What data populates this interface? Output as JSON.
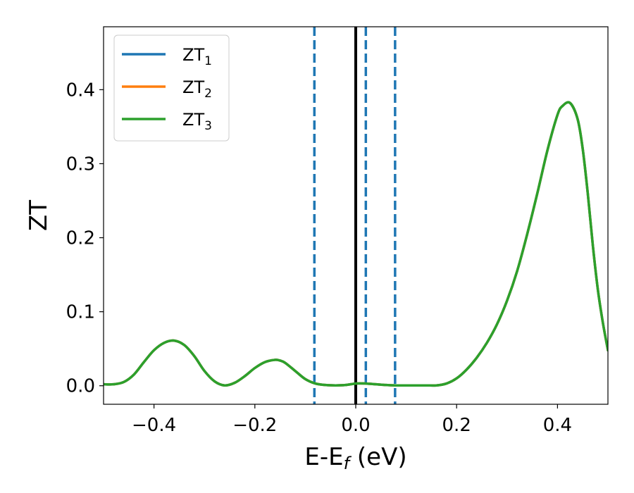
{
  "chart_data": {
    "type": "line",
    "xlabel": {
      "main": "E-E",
      "sub": "f",
      "suffix": " (eV)"
    },
    "ylabel": "ZT",
    "xlim": [
      -0.5,
      0.5
    ],
    "ylim": [
      -0.025,
      0.485
    ],
    "grid": false,
    "legend_position": "top-left",
    "x_ticks": [
      -0.4,
      -0.2,
      0.0,
      0.2,
      0.4
    ],
    "x_tick_labels": [
      "−0.4",
      "−0.2",
      "0.0",
      "0.2",
      "0.4"
    ],
    "y_ticks": [
      0.0,
      0.1,
      0.2,
      0.3,
      0.4
    ],
    "y_tick_labels": [
      "0.0",
      "0.1",
      "0.2",
      "0.3",
      "0.4"
    ],
    "vertical_lines": [
      {
        "x": -0.082,
        "style": "dashed",
        "color": "#1f77b4"
      },
      {
        "x": 0.0,
        "style": "solid",
        "color": "#000000"
      },
      {
        "x": 0.02,
        "style": "dashed",
        "color": "#1f77b4"
      },
      {
        "x": 0.078,
        "style": "dashed",
        "color": "#1f77b4"
      }
    ],
    "x": [
      -0.5,
      -0.48,
      -0.46,
      -0.44,
      -0.42,
      -0.4,
      -0.38,
      -0.36,
      -0.34,
      -0.32,
      -0.3,
      -0.28,
      -0.26,
      -0.24,
      -0.22,
      -0.2,
      -0.18,
      -0.16,
      -0.15,
      -0.14,
      -0.12,
      -0.1,
      -0.08,
      -0.06,
      -0.04,
      -0.02,
      0.0,
      0.02,
      0.04,
      0.06,
      0.08,
      0.1,
      0.12,
      0.14,
      0.16,
      0.18,
      0.2,
      0.22,
      0.24,
      0.26,
      0.28,
      0.3,
      0.32,
      0.34,
      0.36,
      0.38,
      0.4,
      0.41,
      0.425,
      0.44,
      0.45,
      0.46,
      0.47,
      0.48,
      0.49,
      0.5
    ],
    "series": [
      {
        "name": "ZT",
        "sub": "1",
        "color": "#1f77b4",
        "values": [
          0.002,
          0.002,
          0.005,
          0.015,
          0.032,
          0.048,
          0.058,
          0.061,
          0.055,
          0.04,
          0.02,
          0.006,
          0.0005,
          0.004,
          0.013,
          0.024,
          0.032,
          0.035,
          0.034,
          0.031,
          0.02,
          0.009,
          0.003,
          0.001,
          0.0005,
          0.001,
          0.003,
          0.003,
          0.002,
          0.001,
          0.0005,
          0.0005,
          0.0005,
          0.0005,
          0.0005,
          0.003,
          0.01,
          0.022,
          0.038,
          0.058,
          0.083,
          0.115,
          0.155,
          0.205,
          0.26,
          0.318,
          0.366,
          0.378,
          0.382,
          0.36,
          0.32,
          0.26,
          0.19,
          0.13,
          0.085,
          0.048
        ]
      },
      {
        "name": "ZT",
        "sub": "2",
        "color": "#ff7f0e",
        "values": [
          0.002,
          0.002,
          0.005,
          0.015,
          0.032,
          0.048,
          0.058,
          0.061,
          0.055,
          0.04,
          0.02,
          0.006,
          0.0005,
          0.004,
          0.013,
          0.024,
          0.032,
          0.035,
          0.034,
          0.031,
          0.02,
          0.009,
          0.003,
          0.001,
          0.0005,
          0.001,
          0.003,
          0.003,
          0.002,
          0.001,
          0.0005,
          0.0005,
          0.0005,
          0.0005,
          0.0005,
          0.003,
          0.01,
          0.022,
          0.038,
          0.058,
          0.083,
          0.115,
          0.155,
          0.205,
          0.26,
          0.318,
          0.366,
          0.378,
          0.382,
          0.36,
          0.32,
          0.26,
          0.19,
          0.13,
          0.085,
          0.048
        ]
      },
      {
        "name": "ZT",
        "sub": "3",
        "color": "#2ca02c",
        "values": [
          0.002,
          0.002,
          0.005,
          0.015,
          0.032,
          0.048,
          0.058,
          0.061,
          0.055,
          0.04,
          0.02,
          0.006,
          0.0005,
          0.004,
          0.013,
          0.024,
          0.032,
          0.035,
          0.034,
          0.031,
          0.02,
          0.009,
          0.003,
          0.001,
          0.0005,
          0.001,
          0.003,
          0.003,
          0.002,
          0.001,
          0.0005,
          0.0005,
          0.0005,
          0.0005,
          0.0005,
          0.003,
          0.01,
          0.022,
          0.038,
          0.058,
          0.083,
          0.115,
          0.155,
          0.205,
          0.26,
          0.318,
          0.366,
          0.378,
          0.382,
          0.36,
          0.32,
          0.26,
          0.19,
          0.13,
          0.085,
          0.048
        ]
      }
    ]
  }
}
